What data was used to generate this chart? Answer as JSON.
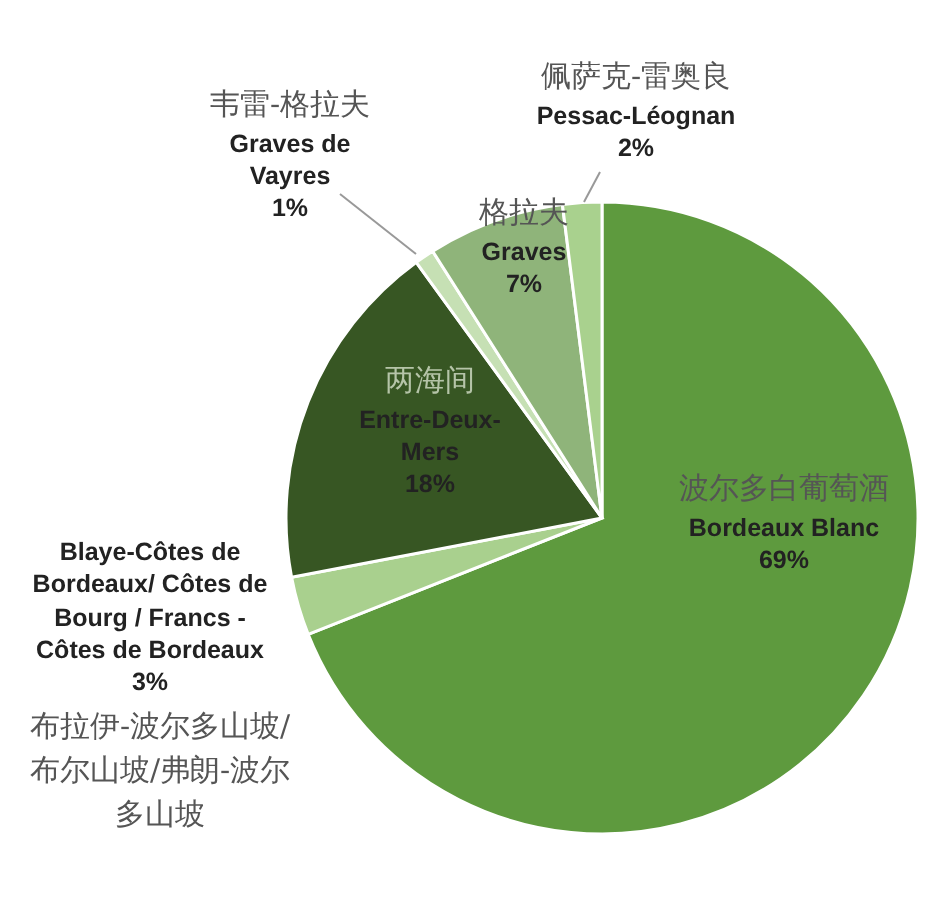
{
  "chart_data": {
    "type": "pie",
    "categories": [
      "Bordeaux Blanc",
      "Blaye-Côtes de Bordeaux/ Côtes de Bourg / Francs -Côtes de Bordeaux",
      "Entre-Deux-Mers",
      "Graves de Vayres",
      "Graves",
      "Pessac-Léognan"
    ],
    "values": [
      69,
      3,
      18,
      1,
      7,
      2
    ],
    "colors": [
      "#5e9a3e",
      "#a9d08e",
      "#375623",
      "#c6e0b4",
      "#8fb47a",
      "#a9d18e"
    ],
    "value_labels": [
      "69%",
      "3%",
      "18%",
      "1%",
      "7%",
      "2%"
    ],
    "annotations": [
      "波尔多白葡萄酒",
      "布拉伊-波尔多山坡/布尔山坡/弗朗-波尔多山坡",
      "两海间",
      "韦雷-格拉夫",
      "格拉夫",
      "佩萨克-雷奥良"
    ]
  }
}
